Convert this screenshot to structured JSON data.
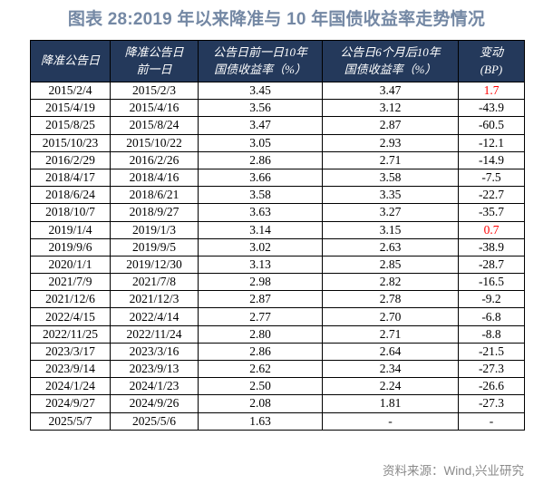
{
  "title": "图表 28:2019 年以来降准与 10 年国债收益率走势情况",
  "source": "资料来源：Wind,兴业研究",
  "colors": {
    "title_text": "#7488a4",
    "header_background": "#24395b",
    "header_text": "#ffffff",
    "positive_change": "#ff0000",
    "body_text": "#000000",
    "border": "#000000",
    "source_text": "#8a8a8a"
  },
  "chart_data": {
    "type": "table",
    "columns": [
      "降准公告日",
      "降准公告日\n前一日",
      "公告日前一日10年\n国债收益率（%）",
      "公告日6个月后10年\n国债收益率（%）",
      "变动\n(BP)"
    ],
    "rows": [
      {
        "announce_date": "2015/2/4",
        "prior_date": "2015/2/3",
        "yield_prior": "3.45",
        "yield_6m_later": "3.47",
        "change_bp": "1.7",
        "change_red": true
      },
      {
        "announce_date": "2015/4/19",
        "prior_date": "2015/4/16",
        "yield_prior": "3.56",
        "yield_6m_later": "3.12",
        "change_bp": "-43.9",
        "change_red": false
      },
      {
        "announce_date": "2015/8/25",
        "prior_date": "2015/8/24",
        "yield_prior": "3.47",
        "yield_6m_later": "2.87",
        "change_bp": "-60.5",
        "change_red": false
      },
      {
        "announce_date": "2015/10/23",
        "prior_date": "2015/10/22",
        "yield_prior": "3.05",
        "yield_6m_later": "2.93",
        "change_bp": "-12.1",
        "change_red": false
      },
      {
        "announce_date": "2016/2/29",
        "prior_date": "2016/2/26",
        "yield_prior": "2.86",
        "yield_6m_later": "2.71",
        "change_bp": "-14.9",
        "change_red": false
      },
      {
        "announce_date": "2018/4/17",
        "prior_date": "2018/4/16",
        "yield_prior": "3.66",
        "yield_6m_later": "3.58",
        "change_bp": "-7.5",
        "change_red": false
      },
      {
        "announce_date": "2018/6/24",
        "prior_date": "2018/6/21",
        "yield_prior": "3.58",
        "yield_6m_later": "3.35",
        "change_bp": "-22.7",
        "change_red": false
      },
      {
        "announce_date": "2018/10/7",
        "prior_date": "2018/9/27",
        "yield_prior": "3.63",
        "yield_6m_later": "3.27",
        "change_bp": "-35.7",
        "change_red": false
      },
      {
        "announce_date": "2019/1/4",
        "prior_date": "2019/1/3",
        "yield_prior": "3.14",
        "yield_6m_later": "3.15",
        "change_bp": "0.7",
        "change_red": true
      },
      {
        "announce_date": "2019/9/6",
        "prior_date": "2019/9/5",
        "yield_prior": "3.02",
        "yield_6m_later": "2.63",
        "change_bp": "-38.9",
        "change_red": false
      },
      {
        "announce_date": "2020/1/1",
        "prior_date": "2019/12/30",
        "yield_prior": "3.13",
        "yield_6m_later": "2.85",
        "change_bp": "-28.7",
        "change_red": false
      },
      {
        "announce_date": "2021/7/9",
        "prior_date": "2021/7/8",
        "yield_prior": "2.98",
        "yield_6m_later": "2.82",
        "change_bp": "-16.5",
        "change_red": false
      },
      {
        "announce_date": "2021/12/6",
        "prior_date": "2021/12/3",
        "yield_prior": "2.87",
        "yield_6m_later": "2.78",
        "change_bp": "-9.2",
        "change_red": false
      },
      {
        "announce_date": "2022/4/15",
        "prior_date": "2022/4/14",
        "yield_prior": "2.77",
        "yield_6m_later": "2.70",
        "change_bp": "-6.8",
        "change_red": false
      },
      {
        "announce_date": "2022/11/25",
        "prior_date": "2022/11/24",
        "yield_prior": "2.80",
        "yield_6m_later": "2.71",
        "change_bp": "-8.8",
        "change_red": false
      },
      {
        "announce_date": "2023/3/17",
        "prior_date": "2023/3/16",
        "yield_prior": "2.86",
        "yield_6m_later": "2.64",
        "change_bp": "-21.5",
        "change_red": false
      },
      {
        "announce_date": "2023/9/14",
        "prior_date": "2023/9/13",
        "yield_prior": "2.62",
        "yield_6m_later": "2.34",
        "change_bp": "-27.3",
        "change_red": false
      },
      {
        "announce_date": "2024/1/24",
        "prior_date": "2024/1/23",
        "yield_prior": "2.50",
        "yield_6m_later": "2.24",
        "change_bp": "-26.6",
        "change_red": false
      },
      {
        "announce_date": "2024/9/27",
        "prior_date": "2024/9/26",
        "yield_prior": "2.08",
        "yield_6m_later": "1.81",
        "change_bp": "-27.3",
        "change_red": false
      },
      {
        "announce_date": "2025/5/7",
        "prior_date": "2025/5/6",
        "yield_prior": "1.63",
        "yield_6m_later": "-",
        "change_bp": "-",
        "change_red": false
      }
    ]
  }
}
